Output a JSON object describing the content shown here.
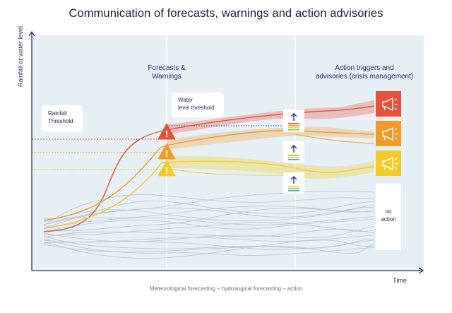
{
  "title": "Communication of forecasts, warnings and action advisories",
  "axes": {
    "ylabel": "Rainfall or water level",
    "xlabel": "Time"
  },
  "labels": {
    "rainfall_threshold_line1": "Rainfall",
    "rainfall_threshold_line2": "Threshold",
    "water_threshold_line1": "Water",
    "water_threshold_line2": "level threshold",
    "forecasts_line1": "Forecasts &",
    "forecasts_line2": "Warnings",
    "action_line1": "Action triggers and",
    "action_line2": "advisories (crisis management)",
    "no_action_line1": "no",
    "no_action_line2": "action"
  },
  "footer": "Meteorological forecasting – hydrological forecasting – action",
  "colors": {
    "background_panel": "#e7f1f5",
    "axis": "#2b2f6e",
    "red": "#e8503c",
    "orange": "#f39a2c",
    "yellow": "#f2cc2a",
    "ensemble_lines": "#b6bccc"
  },
  "icons": {
    "warning": "warning-triangle-icon",
    "advisory": "megaphone-icon",
    "trigger": "arrow-up-bars-icon"
  }
}
